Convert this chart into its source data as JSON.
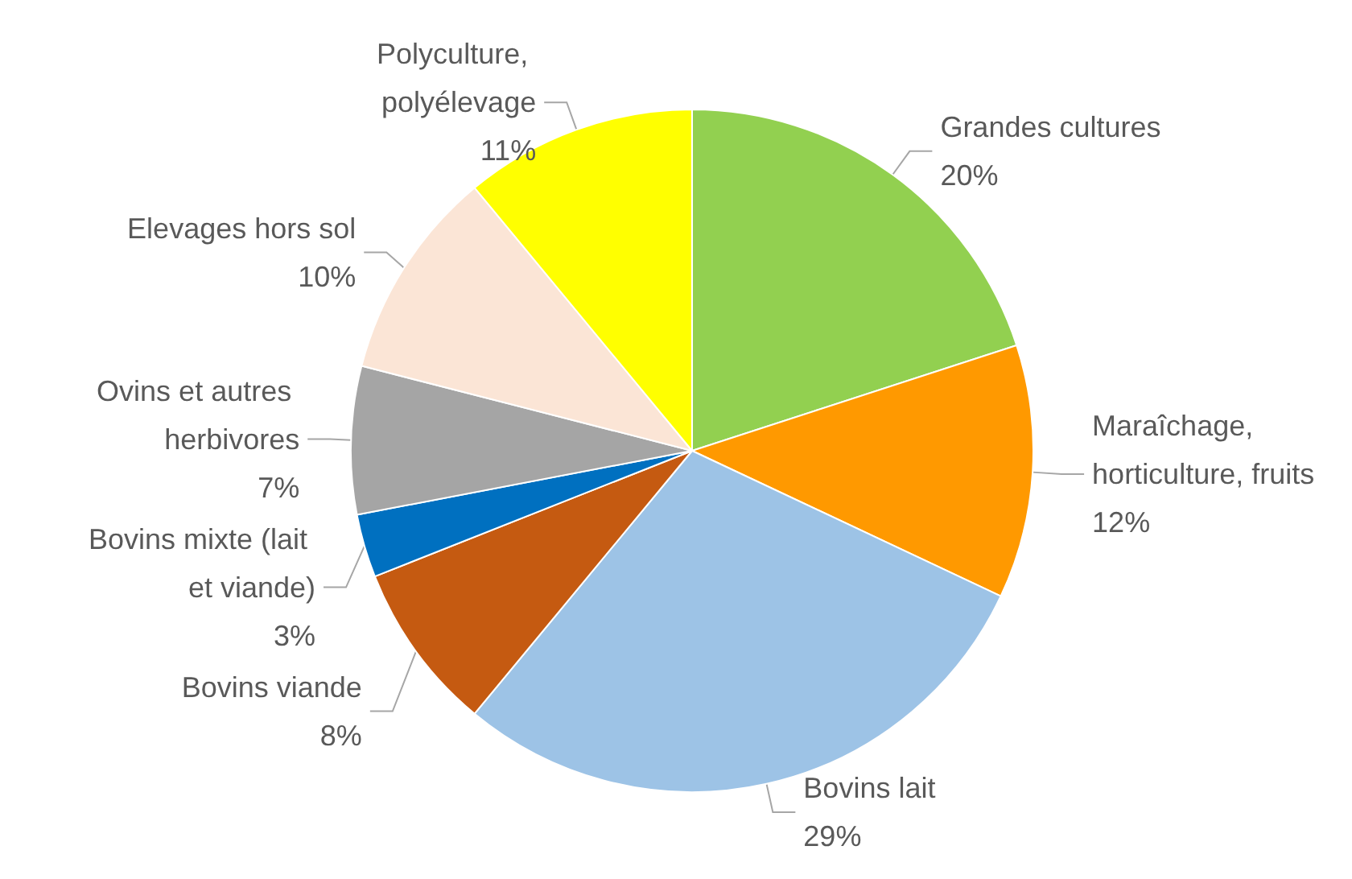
{
  "chart_data": {
    "type": "pie",
    "categories": [
      "Grandes cultures",
      "Maraîchage, horticulture, fruits",
      "Bovins lait",
      "Bovins viande",
      "Bovins mixte (lait et viande)",
      "Ovins et autres herbivores",
      "Elevages hors sol",
      "Polyculture, polyélevage"
    ],
    "values": [
      20,
      12,
      29,
      8,
      3,
      7,
      10,
      11
    ],
    "value_labels": [
      "20%",
      "12%",
      "29%",
      "8%",
      "3%",
      "7%",
      "10%",
      "11%"
    ],
    "colors": [
      "#92d050",
      "#ff9900",
      "#9dc3e6",
      "#c55a11",
      "#0070c0",
      "#a5a5a5",
      "#fbe5d6",
      "#ffff00"
    ]
  }
}
